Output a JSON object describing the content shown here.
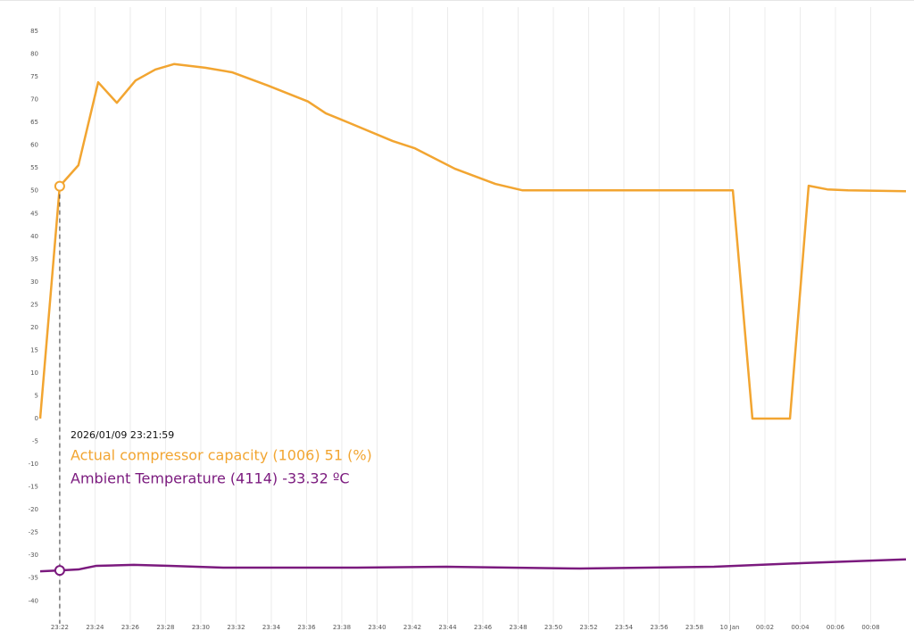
{
  "chart_data": {
    "type": "line",
    "xlim": [
      20.89,
      70.0
    ],
    "ylim": [
      -45,
      88
    ],
    "xticks": [
      {
        "value": 22,
        "label": "23:22"
      },
      {
        "value": 24,
        "label": "23:24"
      },
      {
        "value": 26,
        "label": "23:26"
      },
      {
        "value": 28,
        "label": "23:28"
      },
      {
        "value": 30,
        "label": "23:30"
      },
      {
        "value": 32,
        "label": "23:32"
      },
      {
        "value": 34,
        "label": "23:34"
      },
      {
        "value": 36,
        "label": "23:36"
      },
      {
        "value": 38,
        "label": "23:38"
      },
      {
        "value": 40,
        "label": "23:40"
      },
      {
        "value": 42,
        "label": "23:42"
      },
      {
        "value": 44,
        "label": "23:44"
      },
      {
        "value": 46,
        "label": "23:46"
      },
      {
        "value": 48,
        "label": "23:48"
      },
      {
        "value": 50,
        "label": "23:50"
      },
      {
        "value": 52,
        "label": "23:52"
      },
      {
        "value": 54,
        "label": "23:54"
      },
      {
        "value": 56,
        "label": "23:56"
      },
      {
        "value": 58,
        "label": "23:58"
      },
      {
        "value": 60,
        "label": "10 Jan"
      },
      {
        "value": 62,
        "label": "00:02"
      },
      {
        "value": 64,
        "label": "00:04"
      },
      {
        "value": 66,
        "label": "00:06"
      },
      {
        "value": 68,
        "label": "00:08"
      }
    ],
    "yticks": [
      85,
      80,
      75,
      70,
      65,
      60,
      55,
      50,
      45,
      40,
      35,
      30,
      25,
      20,
      15,
      10,
      5,
      0,
      -5,
      -10,
      -15,
      -20,
      -25,
      -30,
      -35,
      -40
    ],
    "grid": true,
    "series": [
      {
        "color": "#f2a531",
        "x": [
          20.89,
          22.0,
          23.06,
          24.18,
          25.24,
          26.3,
          27.42,
          28.48,
          30.25,
          31.77,
          33.8,
          36.08,
          37.09,
          38.35,
          40.89,
          42.15,
          44.43,
          46.71,
          48.23,
          60.18,
          61.29,
          63.42,
          64.48,
          65.54,
          66.71,
          70.0
        ],
        "values": [
          0,
          51,
          55.6,
          73.8,
          69.3,
          74.2,
          76.6,
          77.8,
          77.0,
          76.0,
          73.1,
          69.6,
          67.0,
          65.0,
          60.9,
          59.3,
          54.8,
          51.5,
          50.1,
          50.1,
          0,
          0,
          51.1,
          50.3,
          50.1,
          49.9
        ]
      },
      {
        "color": "#7b1a7e",
        "x": [
          20.89,
          22.0,
          23.06,
          24.08,
          26.2,
          28.23,
          31.27,
          38.86,
          43.92,
          51.52,
          59.11,
          64.18,
          70.0
        ],
        "values": [
          -33.5,
          -33.32,
          -33.1,
          -32.3,
          -32.1,
          -32.3,
          -32.7,
          -32.7,
          -32.5,
          -32.9,
          -32.5,
          -31.7,
          -30.9
        ]
      }
    ],
    "tooltip": {
      "time": "2026/01/09 23:21:59",
      "lines": [
        "Actual compressor capacity (1006) 51 (%)",
        "Ambient Temperature (4114) -33.32 ºC"
      ]
    }
  }
}
